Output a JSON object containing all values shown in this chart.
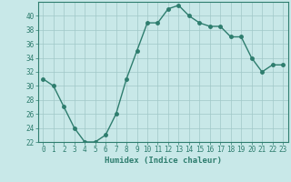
{
  "x": [
    0,
    1,
    2,
    3,
    4,
    5,
    6,
    7,
    8,
    9,
    10,
    11,
    12,
    13,
    14,
    15,
    16,
    17,
    18,
    19,
    20,
    21,
    22,
    23
  ],
  "y": [
    31,
    30,
    27,
    24,
    22,
    22,
    23,
    26,
    31,
    35,
    39,
    39,
    41,
    41.5,
    40,
    39,
    38.5,
    38.5,
    37,
    37,
    34,
    32,
    33,
    33
  ],
  "line_color": "#2e7d6e",
  "marker": "o",
  "marker_size": 2.5,
  "bg_color": "#c8e8e8",
  "grid_color": "#a0c8c8",
  "xlabel": "Humidex (Indice chaleur)",
  "xlim": [
    -0.5,
    23.5
  ],
  "ylim": [
    22,
    42
  ],
  "yticks": [
    22,
    24,
    26,
    28,
    30,
    32,
    34,
    36,
    38,
    40
  ],
  "xticks": [
    0,
    1,
    2,
    3,
    4,
    5,
    6,
    7,
    8,
    9,
    10,
    11,
    12,
    13,
    14,
    15,
    16,
    17,
    18,
    19,
    20,
    21,
    22,
    23
  ],
  "tick_label_fontsize": 5.5,
  "xlabel_fontsize": 6.5,
  "line_width": 1.0
}
